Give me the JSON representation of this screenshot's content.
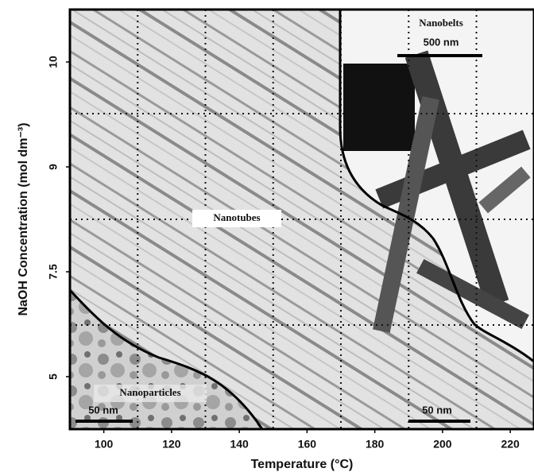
{
  "chart_data": {
    "type": "phase-diagram",
    "x_label": "Temperature (°C)",
    "y_label": "NaOH Concentration (mol dm⁻³)",
    "xlim": [
      90,
      227
    ],
    "xticks": [
      100,
      120,
      140,
      160,
      180,
      200,
      220
    ],
    "xgrid": [
      110,
      130,
      150,
      170,
      190,
      210
    ],
    "categories": [
      "5",
      "7.5",
      "9",
      "10"
    ],
    "annotations": [
      "Nanotubes",
      "Nanobelts",
      "500 nm",
      "Nanoparticles",
      "50 nm",
      "50 nm"
    ]
  }
}
